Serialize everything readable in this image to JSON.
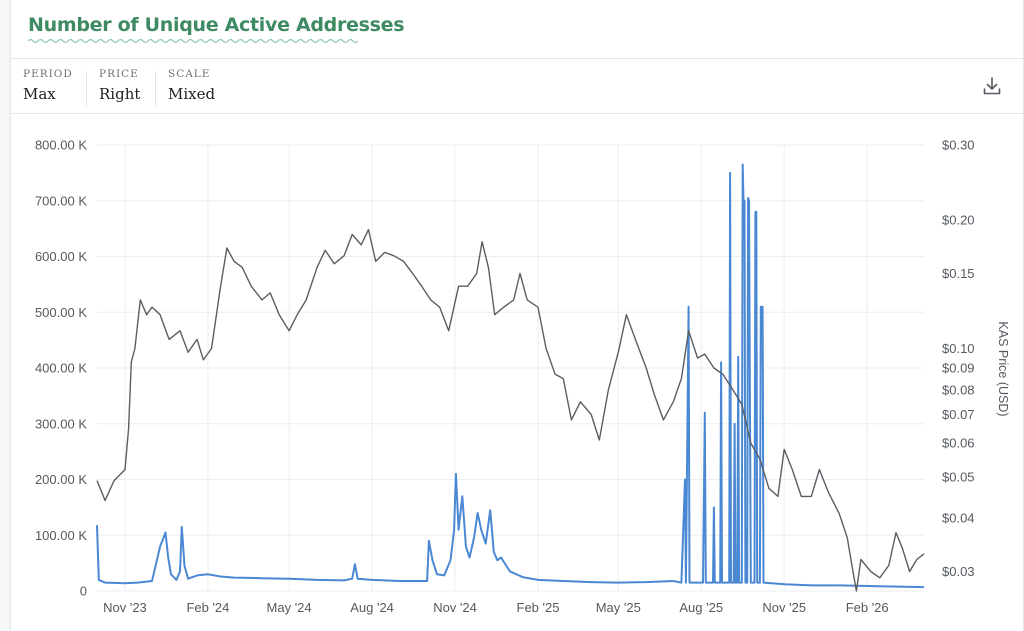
{
  "title": "Number of Unique Active Addresses",
  "controls": {
    "period": {
      "label": "PERIOD",
      "value": "Max"
    },
    "price": {
      "label": "PRICE",
      "value": "Right"
    },
    "scale": {
      "label": "SCALE",
      "value": "Mixed"
    }
  },
  "download_icon": "download-icon",
  "colors": {
    "title": "#3d8a63",
    "addresses": "#4a88d4",
    "price": "#5a5e63"
  },
  "chart_data": {
    "type": "line",
    "x_ticks": [
      "Nov '23",
      "Feb '24",
      "May '24",
      "Aug '24",
      "Nov '24",
      "Feb '25",
      "May '25",
      "Aug '25",
      "Nov '25",
      "Feb '26"
    ],
    "x_range": [
      "2023-10-01",
      "2026-04-05"
    ],
    "y_left": {
      "ticks": [
        "0",
        "100.00 K",
        "200.00 K",
        "300.00 K",
        "400.00 K",
        "500.00 K",
        "600.00 K",
        "700.00 K",
        "800.00 K"
      ],
      "range": [
        0,
        800000
      ],
      "scale": "linear"
    },
    "y_right": {
      "label": "KAS Price (USD)",
      "ticks": [
        "$0.03",
        "$0.04",
        "$0.05",
        "$0.06",
        "$0.07",
        "$0.08",
        "$0.09",
        "$0.10",
        "$0.15",
        "$0.20",
        "$0.30"
      ],
      "scale": "log",
      "range": [
        0.027,
        0.3
      ]
    },
    "grid": true,
    "series": [
      {
        "name": "",
        "axis": "left",
        "color": "#4a88d4",
        "points": [
          [
            "2023-10-01",
            118000
          ],
          [
            "2023-10-03",
            20000
          ],
          [
            "2023-10-10",
            15000
          ],
          [
            "2023-11-01",
            14000
          ],
          [
            "2023-11-15",
            15000
          ],
          [
            "2023-12-01",
            18000
          ],
          [
            "2023-12-05",
            45000
          ],
          [
            "2023-12-10",
            80000
          ],
          [
            "2023-12-13",
            92000
          ],
          [
            "2023-12-16",
            105000
          ],
          [
            "2023-12-19",
            60000
          ],
          [
            "2023-12-22",
            30000
          ],
          [
            "2023-12-28",
            20000
          ],
          [
            "2024-01-01",
            35000
          ],
          [
            "2024-01-03",
            115000
          ],
          [
            "2024-01-06",
            45000
          ],
          [
            "2024-01-10",
            22000
          ],
          [
            "2024-01-20",
            28000
          ],
          [
            "2024-02-01",
            30000
          ],
          [
            "2024-02-15",
            26000
          ],
          [
            "2024-03-01",
            24000
          ],
          [
            "2024-04-01",
            23000
          ],
          [
            "2024-05-01",
            22000
          ],
          [
            "2024-06-01",
            20000
          ],
          [
            "2024-07-01",
            19000
          ],
          [
            "2024-07-10",
            22000
          ],
          [
            "2024-07-13",
            48000
          ],
          [
            "2024-07-16",
            22000
          ],
          [
            "2024-08-01",
            20000
          ],
          [
            "2024-09-01",
            18000
          ],
          [
            "2024-10-01",
            18000
          ],
          [
            "2024-10-03",
            90000
          ],
          [
            "2024-10-07",
            55000
          ],
          [
            "2024-10-12",
            30000
          ],
          [
            "2024-10-20",
            28000
          ],
          [
            "2024-10-27",
            55000
          ],
          [
            "2024-10-31",
            110000
          ],
          [
            "2024-11-02",
            210000
          ],
          [
            "2024-11-05",
            110000
          ],
          [
            "2024-11-09",
            170000
          ],
          [
            "2024-11-13",
            80000
          ],
          [
            "2024-11-17",
            60000
          ],
          [
            "2024-11-22",
            95000
          ],
          [
            "2024-11-26",
            140000
          ],
          [
            "2024-11-30",
            110000
          ],
          [
            "2024-12-05",
            85000
          ],
          [
            "2024-12-10",
            145000
          ],
          [
            "2024-12-14",
            70000
          ],
          [
            "2024-12-18",
            55000
          ],
          [
            "2024-12-22",
            60000
          ],
          [
            "2025-01-01",
            35000
          ],
          [
            "2025-01-15",
            25000
          ],
          [
            "2025-02-01",
            20000
          ],
          [
            "2025-03-01",
            18000
          ],
          [
            "2025-04-01",
            16000
          ],
          [
            "2025-05-01",
            15000
          ],
          [
            "2025-06-01",
            16000
          ],
          [
            "2025-07-01",
            18000
          ],
          [
            "2025-07-10",
            15000
          ],
          [
            "2025-07-14",
            200000
          ],
          [
            "2025-07-15",
            15000
          ],
          [
            "2025-07-18",
            510000
          ],
          [
            "2025-07-19",
            15000
          ],
          [
            "2025-08-03",
            15000
          ],
          [
            "2025-08-05",
            320000
          ],
          [
            "2025-08-06",
            15000
          ],
          [
            "2025-08-14",
            15000
          ],
          [
            "2025-08-15",
            150000
          ],
          [
            "2025-08-16",
            15000
          ],
          [
            "2025-08-22",
            15000
          ],
          [
            "2025-08-23",
            410000
          ],
          [
            "2025-08-24",
            15000
          ],
          [
            "2025-09-01",
            15000
          ],
          [
            "2025-09-02",
            750000
          ],
          [
            "2025-09-03",
            15000
          ],
          [
            "2025-09-06",
            15000
          ],
          [
            "2025-09-07",
            300000
          ],
          [
            "2025-09-08",
            15000
          ],
          [
            "2025-09-10",
            15000
          ],
          [
            "2025-09-11",
            420000
          ],
          [
            "2025-09-12",
            15000
          ],
          [
            "2025-09-15",
            15000
          ],
          [
            "2025-09-16",
            765000
          ],
          [
            "2025-09-17",
            690000
          ],
          [
            "2025-09-18",
            700000
          ],
          [
            "2025-09-19",
            15000
          ],
          [
            "2025-09-21",
            15000
          ],
          [
            "2025-09-22",
            705000
          ],
          [
            "2025-09-23",
            700000
          ],
          [
            "2025-09-25",
            15000
          ],
          [
            "2025-09-29",
            15000
          ],
          [
            "2025-09-30",
            680000
          ],
          [
            "2025-10-01",
            680000
          ],
          [
            "2025-10-02",
            15000
          ],
          [
            "2025-10-05",
            15000
          ],
          [
            "2025-10-06",
            510000
          ],
          [
            "2025-10-08",
            510000
          ],
          [
            "2025-10-09",
            15000
          ],
          [
            "2025-11-01",
            12000
          ],
          [
            "2025-12-01",
            10000
          ],
          [
            "2026-01-01",
            10000
          ],
          [
            "2026-02-01",
            9000
          ],
          [
            "2026-03-01",
            8000
          ],
          [
            "2026-04-05",
            7000
          ]
        ]
      },
      {
        "name": "KAS Price (USD)",
        "axis": "right",
        "color": "#5a5e63",
        "points": [
          [
            "2023-10-01",
            0.049
          ],
          [
            "2023-10-10",
            0.044
          ],
          [
            "2023-10-20",
            0.049
          ],
          [
            "2023-11-01",
            0.052
          ],
          [
            "2023-11-05",
            0.065
          ],
          [
            "2023-11-08",
            0.093
          ],
          [
            "2023-11-12",
            0.1
          ],
          [
            "2023-11-18",
            0.13
          ],
          [
            "2023-11-25",
            0.12
          ],
          [
            "2023-12-01",
            0.125
          ],
          [
            "2023-12-10",
            0.12
          ],
          [
            "2023-12-20",
            0.105
          ],
          [
            "2024-01-01",
            0.11
          ],
          [
            "2024-01-10",
            0.098
          ],
          [
            "2024-01-20",
            0.105
          ],
          [
            "2024-01-27",
            0.094
          ],
          [
            "2024-02-05",
            0.1
          ],
          [
            "2024-02-15",
            0.14
          ],
          [
            "2024-02-22",
            0.172
          ],
          [
            "2024-03-01",
            0.16
          ],
          [
            "2024-03-10",
            0.155
          ],
          [
            "2024-03-20",
            0.14
          ],
          [
            "2024-04-01",
            0.13
          ],
          [
            "2024-04-10",
            0.135
          ],
          [
            "2024-04-20",
            0.12
          ],
          [
            "2024-05-01",
            0.11
          ],
          [
            "2024-05-10",
            0.12
          ],
          [
            "2024-05-20",
            0.13
          ],
          [
            "2024-06-01",
            0.155
          ],
          [
            "2024-06-10",
            0.17
          ],
          [
            "2024-06-20",
            0.158
          ],
          [
            "2024-07-01",
            0.165
          ],
          [
            "2024-07-10",
            0.185
          ],
          [
            "2024-07-20",
            0.175
          ],
          [
            "2024-07-28",
            0.19
          ],
          [
            "2024-08-05",
            0.16
          ],
          [
            "2024-08-15",
            0.168
          ],
          [
            "2024-08-25",
            0.165
          ],
          [
            "2024-09-05",
            0.16
          ],
          [
            "2024-09-15",
            0.15
          ],
          [
            "2024-09-25",
            0.14
          ],
          [
            "2024-10-05",
            0.13
          ],
          [
            "2024-10-15",
            0.125
          ],
          [
            "2024-10-25",
            0.11
          ],
          [
            "2024-11-05",
            0.14
          ],
          [
            "2024-11-15",
            0.14
          ],
          [
            "2024-11-25",
            0.15
          ],
          [
            "2024-12-01",
            0.178
          ],
          [
            "2024-12-08",
            0.155
          ],
          [
            "2024-12-15",
            0.12
          ],
          [
            "2024-12-25",
            0.125
          ],
          [
            "2025-01-05",
            0.13
          ],
          [
            "2025-01-12",
            0.15
          ],
          [
            "2025-01-20",
            0.13
          ],
          [
            "2025-02-01",
            0.125
          ],
          [
            "2025-02-10",
            0.1
          ],
          [
            "2025-02-20",
            0.087
          ],
          [
            "2025-03-01",
            0.085
          ],
          [
            "2025-03-10",
            0.068
          ],
          [
            "2025-03-20",
            0.075
          ],
          [
            "2025-04-01",
            0.07
          ],
          [
            "2025-04-10",
            0.061
          ],
          [
            "2025-04-20",
            0.08
          ],
          [
            "2025-05-01",
            0.098
          ],
          [
            "2025-05-10",
            0.12
          ],
          [
            "2025-05-20",
            0.105
          ],
          [
            "2025-06-01",
            0.09
          ],
          [
            "2025-06-10",
            0.078
          ],
          [
            "2025-06-20",
            0.068
          ],
          [
            "2025-07-01",
            0.075
          ],
          [
            "2025-07-10",
            0.085
          ],
          [
            "2025-07-18",
            0.11
          ],
          [
            "2025-07-28",
            0.095
          ],
          [
            "2025-08-05",
            0.097
          ],
          [
            "2025-08-15",
            0.09
          ],
          [
            "2025-08-25",
            0.087
          ],
          [
            "2025-09-05",
            0.08
          ],
          [
            "2025-09-15",
            0.074
          ],
          [
            "2025-09-25",
            0.06
          ],
          [
            "2025-10-05",
            0.055
          ],
          [
            "2025-10-15",
            0.047
          ],
          [
            "2025-10-25",
            0.045
          ],
          [
            "2025-11-01",
            0.058
          ],
          [
            "2025-11-10",
            0.052
          ],
          [
            "2025-11-20",
            0.045
          ],
          [
            "2025-12-01",
            0.045
          ],
          [
            "2025-12-10",
            0.052
          ],
          [
            "2025-12-20",
            0.046
          ],
          [
            "2026-01-01",
            0.041
          ],
          [
            "2026-01-10",
            0.036
          ],
          [
            "2026-01-15",
            0.031
          ],
          [
            "2026-01-20",
            0.027
          ],
          [
            "2026-01-25",
            0.032
          ],
          [
            "2026-02-05",
            0.03
          ],
          [
            "2026-02-15",
            0.029
          ],
          [
            "2026-02-25",
            0.031
          ],
          [
            "2026-03-05",
            0.037
          ],
          [
            "2026-03-12",
            0.034
          ],
          [
            "2026-03-20",
            0.03
          ],
          [
            "2026-03-28",
            0.032
          ],
          [
            "2026-04-05",
            0.033
          ]
        ]
      }
    ]
  }
}
